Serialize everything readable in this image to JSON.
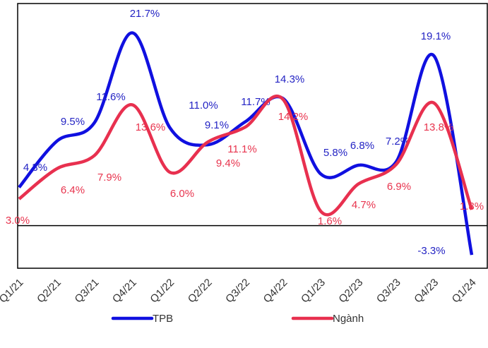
{
  "chart_data": {
    "type": "line",
    "categories": [
      "Q1/21",
      "Q2/21",
      "Q3/21",
      "Q4/21",
      "Q1/22",
      "Q2/22",
      "Q3/22",
      "Q4/22",
      "Q1/23",
      "Q2/23",
      "Q3/23",
      "Q4/23",
      "Q1/24"
    ],
    "series": [
      {
        "name": "TPB",
        "color": "#1010e0",
        "label_color": "#2424c4",
        "values": [
          4.3,
          9.5,
          11.6,
          21.7,
          11.0,
          9.1,
          11.7,
          14.3,
          5.8,
          6.8,
          7.2,
          19.1,
          -3.3
        ],
        "value_labels": [
          "4.3%",
          "9.5%",
          "11.6%",
          "21.7%",
          "11.0%",
          "9.1%",
          "11.7%",
          "14.3%",
          "5.8%",
          "6.8%",
          "7.2%",
          "19.1%",
          "-3.3%"
        ]
      },
      {
        "name": "Ngành",
        "color": "#e8304f",
        "label_color": "#e8344e",
        "values": [
          3.0,
          6.4,
          7.9,
          13.6,
          6.0,
          9.4,
          11.1,
          14.2,
          1.6,
          4.7,
          6.9,
          13.8,
          1.8
        ],
        "value_labels": [
          "3.0%",
          "6.4%",
          "7.9%",
          "13.6%",
          "6.0%",
          "9.4%",
          "11.1%",
          "14.2%",
          "1.6%",
          "4.7%",
          "6.9%",
          "13.8%",
          "1.8%"
        ]
      }
    ],
    "ylim": [
      -4.8,
      25
    ],
    "legend": "bottom"
  }
}
